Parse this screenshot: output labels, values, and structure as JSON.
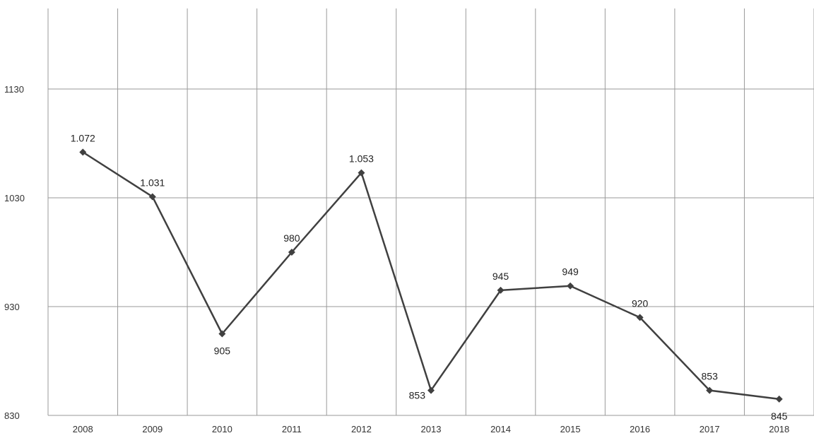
{
  "chart_data": {
    "type": "line",
    "title": "",
    "xlabel": "",
    "ylabel": "",
    "categories": [
      "2008",
      "2009",
      "2010",
      "2011",
      "2012",
      "2013",
      "2014",
      "2015",
      "2016",
      "2017",
      "2018"
    ],
    "series": [
      {
        "values": [
          1072,
          1031,
          905,
          980,
          1053,
          853,
          945,
          949,
          920,
          853,
          845
        ],
        "data_labels": [
          "1.072",
          "1.031",
          "905",
          "980",
          "1.053",
          "853",
          "945",
          "949",
          "920",
          "853",
          "845"
        ],
        "marker": "diamond",
        "color": "#404040"
      }
    ],
    "yticks": [
      830,
      930,
      1030,
      1130
    ],
    "ylim": [
      830,
      1190
    ],
    "grid": true,
    "legend": "none"
  }
}
